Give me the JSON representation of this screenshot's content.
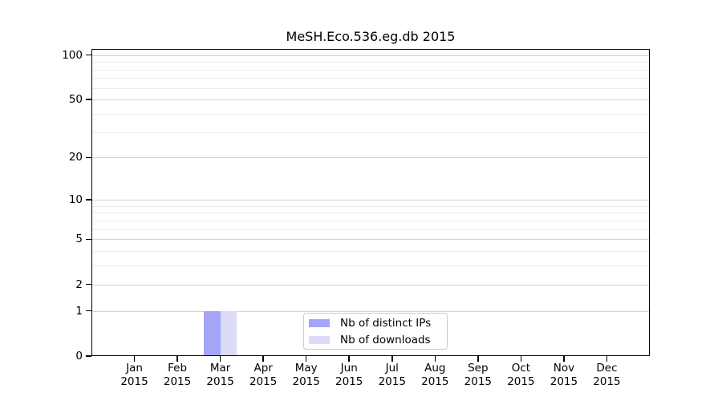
{
  "chart_data": {
    "type": "bar",
    "title": "MeSH.Eco.536.eg.db 2015",
    "x": {
      "categories": [
        "Jan",
        "Feb",
        "Mar",
        "Apr",
        "May",
        "Jun",
        "Jul",
        "Aug",
        "Sep",
        "Oct",
        "Nov",
        "Dec"
      ],
      "year": "2015"
    },
    "series": [
      {
        "name": "Nb of distinct IPs",
        "color": "#a5a5f5",
        "values": [
          0,
          0,
          1,
          0,
          0,
          0,
          0,
          0,
          0,
          0,
          0,
          0
        ]
      },
      {
        "name": "Nb of downloads",
        "color": "#dbdbf8",
        "values": [
          0,
          0,
          1,
          0,
          0,
          0,
          0,
          0,
          0,
          0,
          0,
          0
        ]
      }
    ],
    "y_axis": {
      "scale": "log1p",
      "major_ticks": [
        100,
        50,
        20,
        10,
        5,
        2,
        1,
        0
      ],
      "minor_ticks": [
        3,
        4,
        6,
        7,
        8,
        9,
        30,
        40,
        60,
        70,
        80,
        90
      ],
      "ylim": [
        0,
        110
      ]
    },
    "legend": {
      "position": "bottom-center",
      "entries": [
        "Nb of distinct IPs",
        "Nb of downloads"
      ]
    },
    "grid": "horizontal"
  },
  "colors": {
    "axis": "#000000",
    "major_grid": "#d4d4d4",
    "minor_grid": "#ececec",
    "legend_border": "#cbcbcb",
    "background": "#ffffff"
  }
}
